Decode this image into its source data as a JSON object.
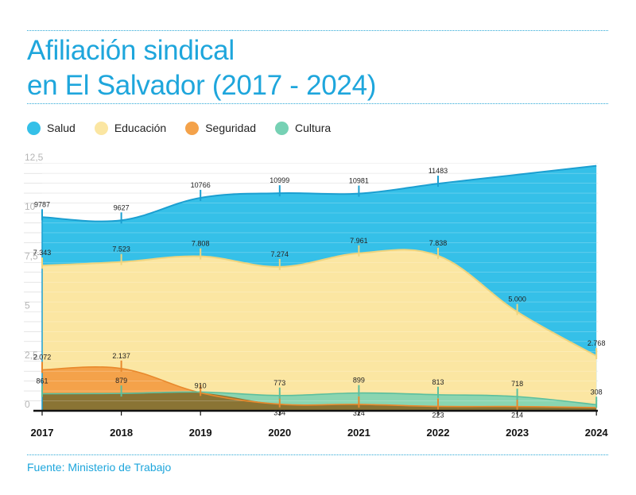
{
  "title_line1": "Afiliación sindical",
  "title_line2": "en El Salvador (2017 - 2024)",
  "source": "Fuente: Ministerio de Trabajo",
  "colors": {
    "salud": "#35c0e8",
    "educacion": "#fbe6a2",
    "seguridad": "#f4a24a",
    "cultura": "#76d1b4",
    "accent": "#1ea6dc"
  },
  "chart_data": {
    "type": "area",
    "x": [
      "2017",
      "2018",
      "2019",
      "2020",
      "2021",
      "2022",
      "2023",
      "2024"
    ],
    "yticks": [
      "0",
      "2,5",
      "5",
      "7,5",
      "10",
      "12,5"
    ],
    "ylim": [
      0,
      12.5
    ],
    "legend_position": "top",
    "grid": true,
    "series": [
      {
        "name": "Salud",
        "color": "#35c0e8",
        "values": [
          9.787,
          9.627,
          10.766,
          10.999,
          10.981,
          11.483,
          null,
          null
        ],
        "labels": [
          "9787",
          "9627",
          "10766",
          "10999",
          "10981",
          "11483",
          "",
          ""
        ]
      },
      {
        "name": "Educación",
        "color": "#fbe6a2",
        "values": [
          7.343,
          7.523,
          7.808,
          7.274,
          7.961,
          7.838,
          5.0,
          2.768
        ],
        "labels": [
          "7.343",
          "7.523",
          "7.808",
          "7.274",
          "7.961",
          "7.838",
          "5.000",
          "2.768"
        ]
      },
      {
        "name": "Seguridad",
        "color": "#f4a24a",
        "values": [
          2.072,
          2.137,
          0.91,
          0.334,
          0.324,
          0.223,
          0.214,
          null
        ],
        "labels": [
          "2.072",
          "2.137",
          "910",
          "334",
          "324",
          "223",
          "214",
          ""
        ]
      },
      {
        "name": "Cultura",
        "color": "#76d1b4",
        "values": [
          0.861,
          0.879,
          null,
          0.773,
          0.899,
          0.813,
          0.718,
          0.308
        ],
        "labels": [
          "861",
          "879",
          "",
          "773",
          "899",
          "813",
          "718",
          "308"
        ]
      }
    ]
  }
}
